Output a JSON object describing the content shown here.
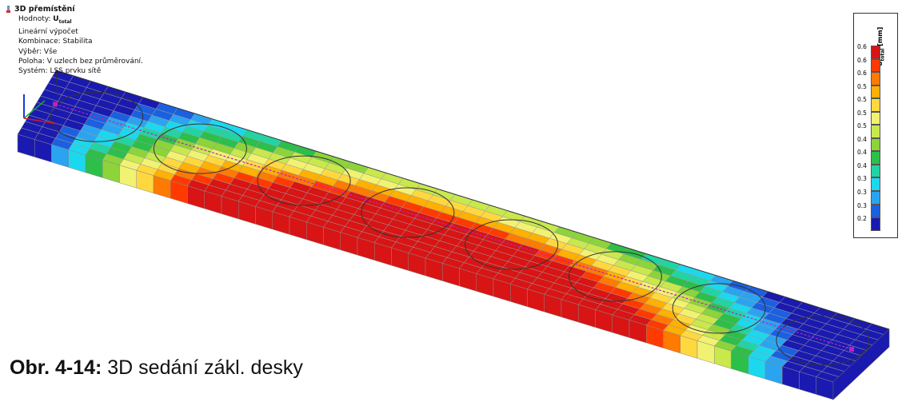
{
  "info": {
    "title": "3D přemístění",
    "rows": [
      {
        "key": "Hodnoty: ",
        "value": "U",
        "sub": "total"
      },
      {
        "key": "Lineární výpočet",
        "value": "",
        "sub": ""
      },
      {
        "key": "Kombinace: Stabilita",
        "value": "",
        "sub": ""
      },
      {
        "key": "Výběr: Vše",
        "value": "",
        "sub": ""
      },
      {
        "key": "Poloha: V uzlech bez průměrování.",
        "value": "",
        "sub": ""
      },
      {
        "key": "Systém: LSS prvku sítě",
        "value": "",
        "sub": ""
      }
    ]
  },
  "legend": {
    "unit_main": "U",
    "unit_sub": "total",
    "unit_suffix": " [mm]",
    "values": [
      "0.6",
      "0.6",
      "0.6",
      "0.5",
      "0.5",
      "0.5",
      "0.5",
      "0.4",
      "0.4",
      "0.4",
      "0.3",
      "0.3",
      "0.3",
      "0.2"
    ],
    "colors": [
      "#d81414",
      "#ff3a00",
      "#ff7a00",
      "#ffb000",
      "#ffd840",
      "#f2f272",
      "#c8e84c",
      "#8cd43a",
      "#2cbf4a",
      "#22d4a2",
      "#1cd8ee",
      "#2aa4f0",
      "#1a60e0",
      "#1a1ab0"
    ]
  },
  "caption": {
    "label": "Obr. 4-14:",
    "text": " 3D sedání zákl. desky"
  }
}
